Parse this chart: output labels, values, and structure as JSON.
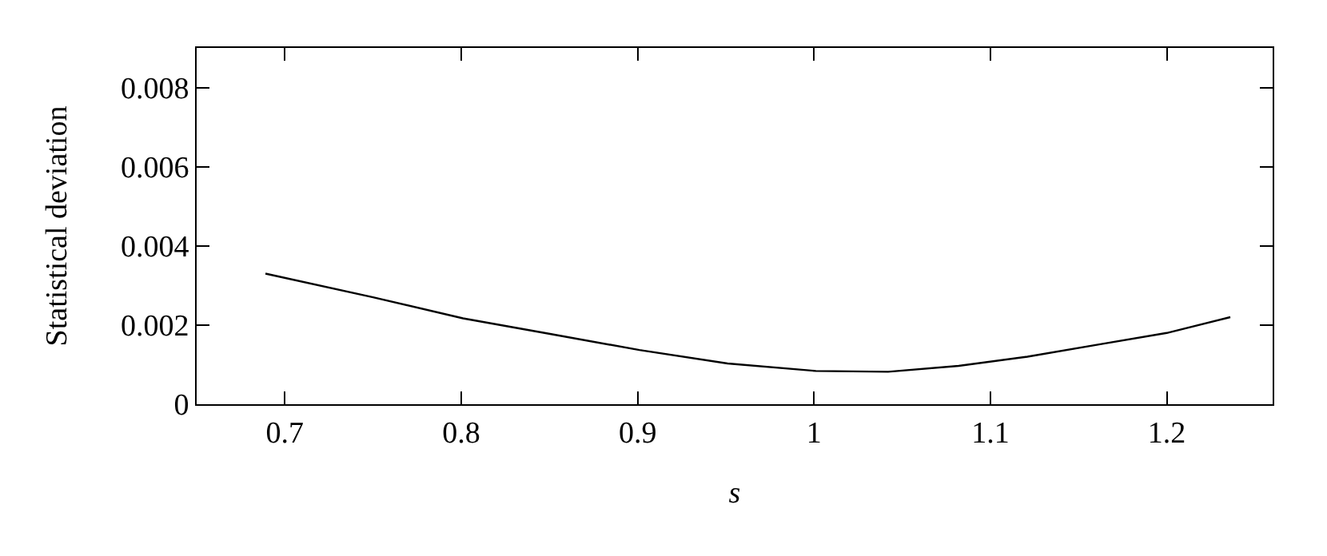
{
  "chart_data": {
    "type": "line",
    "xlabel": "s",
    "ylabel": "Statistical deviation",
    "x": [
      0.689,
      0.75,
      0.801,
      0.851,
      0.901,
      0.951,
      1.001,
      1.042,
      1.082,
      1.121,
      1.163,
      1.2,
      1.236
    ],
    "series": [
      {
        "color": "#000000",
        "values": [
          0.0033,
          0.0027,
          0.00217,
          0.00177,
          0.00137,
          0.00103,
          0.00084,
          0.00082,
          0.00097,
          0.0012,
          0.00152,
          0.0018,
          0.0022
        ]
      }
    ],
    "xlim": [
      0.65,
      1.26
    ],
    "xticks": [
      {
        "value": 0.7,
        "label": "0.7"
      },
      {
        "value": 0.8,
        "label": "0.8"
      },
      {
        "value": 0.9,
        "label": "0.9"
      },
      1,
      {
        "value": 1.1,
        "label": "1.1"
      },
      {
        "value": 1.2,
        "label": "1.2"
      }
    ],
    "ylim": [
      0,
      0.009
    ],
    "yticks": [
      0,
      0.002,
      0.004,
      0.006,
      0.008
    ],
    "marker": "none",
    "line_style": "solid"
  }
}
